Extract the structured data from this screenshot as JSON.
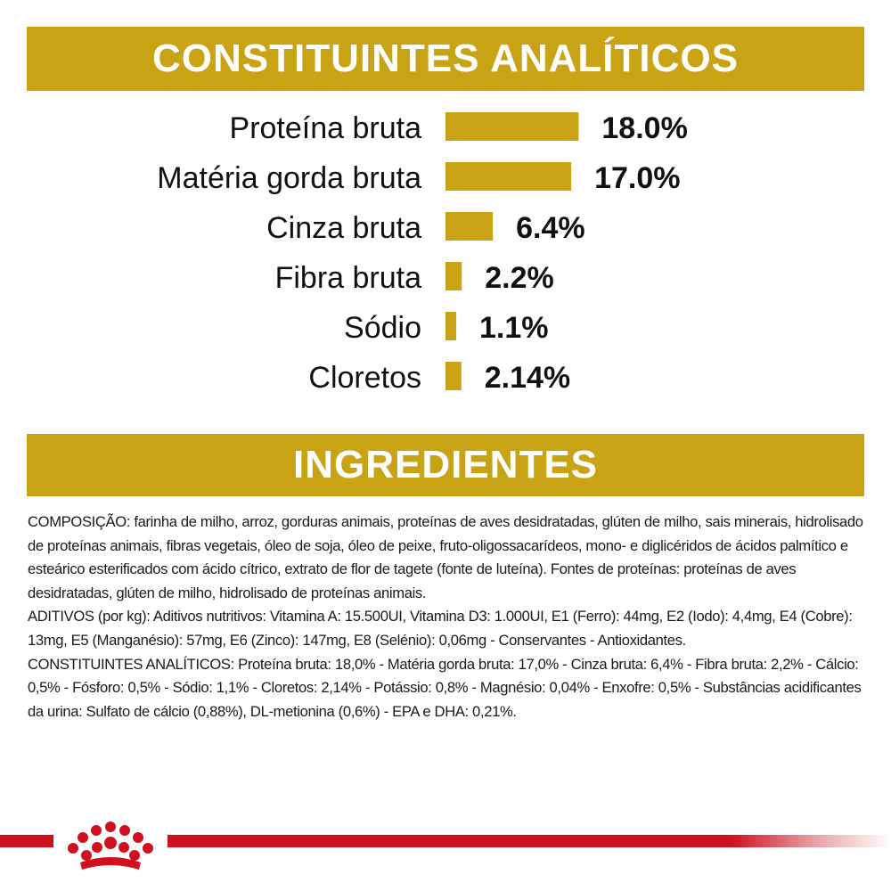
{
  "colors": {
    "accent": "#c8a314",
    "brand_red": "#d0101e",
    "text": "#111111"
  },
  "sections": {
    "analytic_title": "CONSTITUINTES ANALÍTICOS",
    "ingredients_title": "INGREDIENTES"
  },
  "chart_data": {
    "type": "bar",
    "orientation": "horizontal",
    "title": "CONSTITUINTES ANALÍTICOS",
    "categories": [
      "Proteína bruta",
      "Matéria gorda bruta",
      "Cinza bruta",
      "Fibra bruta",
      "Sódio",
      "Cloretos"
    ],
    "values": [
      18.0,
      17.0,
      6.4,
      2.2,
      1.1,
      2.14
    ],
    "labels": [
      "18.0%",
      "17.0%",
      "6.4%",
      "2.2%",
      "1.1%",
      "2.14%"
    ],
    "unit": "%",
    "grid": false,
    "legend": "none"
  },
  "ingredients": {
    "composition": "COMPOSIÇÃO: farinha de milho, arroz, gorduras animais, proteínas de aves desidratadas, glúten de milho, sais minerais, hidrolisado de proteínas animais, fibras vegetais, óleo de soja, óleo de peixe, fruto-oligossacarídeos, mono- e diglicéridos de ácidos palmítico e esteárico esterificados com ácido cítrico, extrato de flor de tagete (fonte de luteína). Fontes de proteínas: proteínas de aves desidratadas, glúten de milho, hidrolisado de proteínas animais.",
    "additives": "ADITIVOS (por kg): Aditivos nutritivos: Vitamina A: 15.500UI, Vitamina D3: 1.000UI, E1 (Ferro): 44mg, E2 (Iodo): 4,4mg, E4 (Cobre): 13mg, E5 (Manganésio): 57mg, E6 (Zinco): 147mg, E8 (Selénio): 0,06mg - Conservantes - Antioxidantes.",
    "analytic": "CONSTITUINTES ANALÍTICOS: Proteína bruta: 18,0% - Matéria gorda bruta: 17,0% - Cinza bruta: 6,4% - Fibra bruta: 2,2% - Cálcio: 0,5% - Fósforo: 0,5% - Sódio: 1,1% - Cloretos: 2,14% - Potássio: 0,8% - Magnésio: 0,04% - Enxofre: 0,5% - Substâncias acidificantes da urina: Sulfato de cálcio (0,88%), DL-metionina (0,6%) - EPA e DHA: 0,21%."
  },
  "brand": {
    "logo_icon": "crown-icon"
  }
}
